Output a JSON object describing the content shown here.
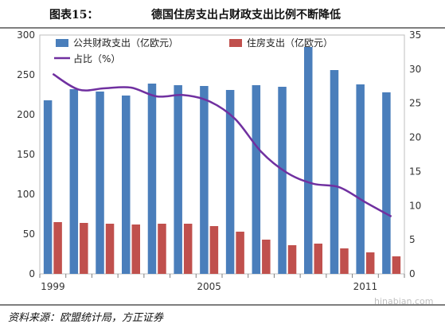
{
  "header": {
    "label": "图表15：",
    "title": "德国住房支出占财政支出比例不断降低"
  },
  "footer": {
    "source": "资料来源：欧盟统计局，方正证券",
    "watermark": "hinabian.com"
  },
  "colors": {
    "public_bar": "#4a7ebb",
    "housing_bar": "#c0504d",
    "ratio_line": "#7030a0"
  },
  "chart_data": {
    "type": "bar",
    "x": [
      1999,
      2000,
      2001,
      2002,
      2003,
      2004,
      2005,
      2006,
      2007,
      2008,
      2009,
      2010,
      2011,
      2012
    ],
    "x_tick_labels": [
      "1999",
      "2005",
      "2011"
    ],
    "x_tick_years": [
      1999,
      2005,
      2011
    ],
    "series": [
      {
        "name": "公共财政支出（亿欧元）",
        "type": "bar",
        "axis": "left",
        "values": [
          218,
          232,
          229,
          224,
          239,
          237,
          236,
          231,
          237,
          235,
          285,
          256,
          238,
          228
        ]
      },
      {
        "name": "住房支出（亿欧元）",
        "type": "bar",
        "axis": "left",
        "values": [
          65,
          64,
          63,
          62,
          63,
          63,
          60,
          53,
          43,
          36,
          38,
          32,
          27,
          22
        ]
      },
      {
        "name": "占比（%）",
        "type": "line",
        "axis": "right",
        "values": [
          29.3,
          27.0,
          27.2,
          27.3,
          26.0,
          26.2,
          25.3,
          22.7,
          17.9,
          14.8,
          13.2,
          12.7,
          10.5,
          8.4
        ]
      }
    ],
    "ylim_left": [
      0,
      300
    ],
    "yticks_left": [
      0,
      50,
      100,
      150,
      200,
      250,
      300
    ],
    "ylim_right": [
      0,
      35
    ],
    "yticks_right": [
      0,
      5,
      10,
      15,
      20,
      25,
      30,
      35
    ],
    "legend_position": "top",
    "grid": false
  }
}
